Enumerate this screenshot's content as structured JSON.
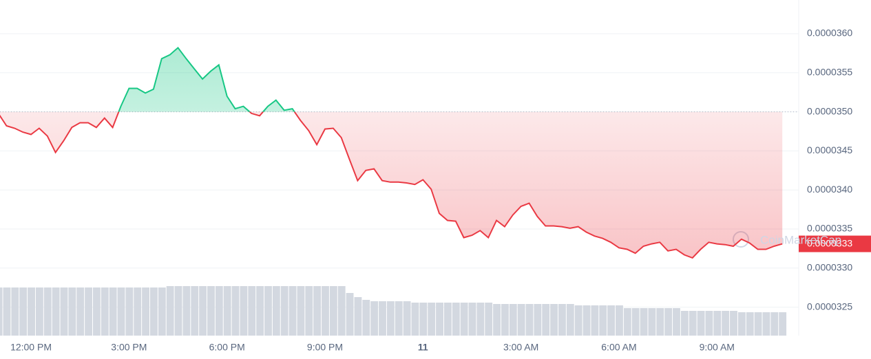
{
  "chart_data": {
    "type": "line",
    "categories": [
      null,
      null,
      null,
      null,
      "12:00 PM",
      null,
      null,
      null,
      null,
      null,
      null,
      null,
      null,
      null,
      null,
      null,
      "3:00 PM",
      null,
      null,
      null,
      null,
      null,
      null,
      null,
      null,
      null,
      null,
      null,
      "6:00 PM",
      null,
      null,
      null,
      null,
      null,
      null,
      null,
      null,
      null,
      null,
      null,
      "9:00 PM",
      null,
      null,
      null,
      null,
      null,
      null,
      null,
      null,
      null,
      null,
      null,
      "11",
      null,
      null,
      null,
      null,
      null,
      null,
      null,
      null,
      null,
      null,
      null,
      "3:00 AM",
      null,
      null,
      null,
      null,
      null,
      null,
      null,
      null,
      null,
      null,
      null,
      "6:00 AM",
      null,
      null,
      null,
      null,
      null,
      null,
      null,
      null,
      null,
      null,
      null,
      "9:00 AM",
      null,
      null,
      null,
      null,
      null,
      null,
      null,
      null
    ],
    "values": [
      3.498e-05,
      3.482e-05,
      3.479e-05,
      3.474e-05,
      3.471e-05,
      3.479e-05,
      3.469e-05,
      3.448e-05,
      3.463e-05,
      3.48e-05,
      3.486e-05,
      3.486e-05,
      3.48e-05,
      3.492e-05,
      3.48e-05,
      3.507e-05,
      3.53e-05,
      3.53e-05,
      3.524e-05,
      3.529e-05,
      3.568e-05,
      3.573e-05,
      3.582e-05,
      3.568e-05,
      3.555e-05,
      3.542e-05,
      3.552e-05,
      3.56e-05,
      3.52e-05,
      3.504e-05,
      3.507e-05,
      3.498e-05,
      3.495e-05,
      3.507e-05,
      3.515e-05,
      3.502e-05,
      3.504e-05,
      3.489e-05,
      3.476e-05,
      3.458e-05,
      3.478e-05,
      3.479e-05,
      3.467e-05,
      3.439e-05,
      3.412e-05,
      3.425e-05,
      3.427e-05,
      3.412e-05,
      3.41e-05,
      3.41e-05,
      3.409e-05,
      3.407e-05,
      3.413e-05,
      3.401e-05,
      3.37e-05,
      3.361e-05,
      3.36e-05,
      3.339e-05,
      3.342e-05,
      3.348e-05,
      3.339e-05,
      3.361e-05,
      3.353e-05,
      3.368e-05,
      3.379e-05,
      3.383e-05,
      3.366e-05,
      3.354e-05,
      3.354e-05,
      3.353e-05,
      3.351e-05,
      3.353e-05,
      3.346e-05,
      3.341e-05,
      3.338e-05,
      3.333e-05,
      3.326e-05,
      3.324e-05,
      3.319e-05,
      3.328e-05,
      3.331e-05,
      3.333e-05,
      3.322e-05,
      3.324e-05,
      3.317e-05,
      3.313e-05,
      3.324e-05,
      3.333e-05,
      3.331e-05,
      3.33e-05,
      3.328e-05,
      3.337e-05,
      3.332e-05,
      3.324e-05,
      3.324e-05,
      3.328e-05,
      3.331e-05
    ],
    "volume": [
      70,
      70,
      70,
      70,
      70,
      70,
      70,
      70,
      70,
      70,
      70,
      70,
      70,
      70,
      70,
      70,
      70,
      70,
      70,
      70,
      70,
      72,
      72,
      72,
      72,
      72,
      72,
      72,
      72,
      72,
      72,
      72,
      72,
      72,
      72,
      72,
      72,
      72,
      72,
      72,
      72,
      72,
      72,
      62,
      56,
      52,
      50,
      50,
      50,
      50,
      50,
      48,
      48,
      48,
      48,
      48,
      48,
      48,
      48,
      48,
      48,
      46,
      46,
      46,
      46,
      46,
      46,
      46,
      46,
      46,
      46,
      44,
      44,
      44,
      44,
      44,
      44,
      40,
      40,
      40,
      40,
      40,
      40,
      40,
      36,
      36,
      36,
      36,
      36,
      36,
      36,
      34,
      34,
      34,
      34,
      34,
      34
    ],
    "baseline": 3.5e-05,
    "up_color": "#16c784",
    "down_color": "#ea3943",
    "volume_color": "#d3d8e0",
    "ylim": [
      3.21356e-05,
      3.64313e-05
    ],
    "yticks": [
      {
        "value": 3.25e-05,
        "label": "0.0000325"
      },
      {
        "value": 3.3e-05,
        "label": "0.0000330"
      },
      {
        "value": 3.35e-05,
        "label": "0.0000335"
      },
      {
        "value": 3.4e-05,
        "label": "0.0000340"
      },
      {
        "value": 3.45e-05,
        "label": "0.0000345"
      },
      {
        "value": 3.5e-05,
        "label": "0.0000350"
      },
      {
        "value": 3.55e-05,
        "label": "0.0000355"
      },
      {
        "value": 3.6e-05,
        "label": "0.0000360"
      }
    ],
    "grid": true,
    "last_price_label": "0.0000333",
    "watermark": "CoinMarketCap"
  }
}
